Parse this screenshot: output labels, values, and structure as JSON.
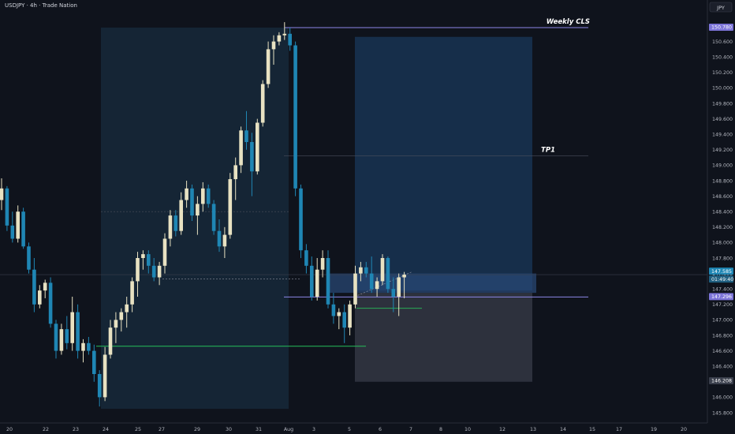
{
  "header": {
    "title": "USDJPY · 4h · Trade Nation"
  },
  "currency_badge": "JPY",
  "colors": {
    "background": "#0f131c",
    "bull": "#e8e2c2",
    "bear": "#1f86b4",
    "level_line": "#8c86e6",
    "green_line": "#26c05a",
    "target_zone": "#1a3a5e",
    "stop_zone": "#3a3f4c",
    "range_box": "#16293a",
    "label_bg_purple": "#7c74d8",
    "label_bg_gray": "#3a3f4c"
  },
  "chart_data": {
    "type": "candlestick",
    "title": "USDJPY · 4h · Trade Nation",
    "ylim": [
      145.7,
      151.0
    ],
    "y_ticks": [
      "150.800",
      "150.600",
      "150.400",
      "150.200",
      "150.000",
      "149.800",
      "149.600",
      "149.400",
      "149.200",
      "149.000",
      "148.800",
      "148.600",
      "148.400",
      "148.200",
      "148.000",
      "147.800",
      "147.600",
      "147.400",
      "147.200",
      "147.000",
      "146.800",
      "146.600",
      "146.400",
      "146.200",
      "146.000",
      "145.800"
    ],
    "x_ticks": [
      "20",
      "22",
      "23",
      "24",
      "25",
      "27",
      "29",
      "30",
      "31",
      "Aug",
      "3",
      "5",
      "6",
      "7",
      "8",
      "10",
      "12",
      "13",
      "14",
      "15",
      "17",
      "19",
      "20"
    ],
    "price_labels": [
      {
        "value": 150.78,
        "text": "150.780",
        "style": "purple"
      },
      {
        "value": 147.585,
        "text": "147.585",
        "style": "current"
      },
      {
        "value": 147.585,
        "text": "01:49:40",
        "style": "countdown"
      },
      {
        "value": 147.296,
        "text": "147.296",
        "style": "purple"
      },
      {
        "value": 146.208,
        "text": "146.208",
        "style": "gray"
      }
    ],
    "annotations": [
      {
        "text": "Weekly CLS",
        "value": 150.78
      },
      {
        "text": "TP1",
        "value": 149.12
      }
    ],
    "levels": [
      {
        "name": "weekly-cls-line",
        "value": 150.78,
        "color": "level_line"
      },
      {
        "name": "entry-line",
        "value": 147.296,
        "color": "level_line"
      },
      {
        "name": "tp1-line",
        "value": 149.12,
        "color": "grid"
      },
      {
        "name": "support-line",
        "value": 146.66,
        "color": "green_line"
      },
      {
        "name": "stop-line",
        "value": 147.15,
        "color": "green_line"
      },
      {
        "name": "range-mid-dashed",
        "value": 148.4,
        "color": "grid"
      },
      {
        "name": "low-dashed",
        "value": 147.53,
        "color": "grid"
      }
    ],
    "zones": [
      {
        "name": "range-box",
        "y_from": 145.85,
        "y_to": 150.78
      },
      {
        "name": "target-zone",
        "y_from": 147.38,
        "y_to": 150.66
      },
      {
        "name": "stop-zone",
        "y_from": 146.2,
        "y_to": 147.35
      },
      {
        "name": "entry-band",
        "y_from": 147.35,
        "y_to": 147.6
      }
    ],
    "candles": [
      {
        "o": 148.55,
        "h": 148.83,
        "l": 148.42,
        "c": 148.7
      },
      {
        "o": 148.7,
        "h": 148.73,
        "l": 148.15,
        "c": 148.22
      },
      {
        "o": 148.22,
        "h": 148.4,
        "l": 148.0,
        "c": 148.05
      },
      {
        "o": 148.05,
        "h": 148.48,
        "l": 148.0,
        "c": 148.4
      },
      {
        "o": 148.4,
        "h": 148.45,
        "l": 147.92,
        "c": 147.95
      },
      {
        "o": 147.95,
        "h": 148.0,
        "l": 147.6,
        "c": 147.65
      },
      {
        "o": 147.65,
        "h": 147.8,
        "l": 147.1,
        "c": 147.2
      },
      {
        "o": 147.2,
        "h": 147.45,
        "l": 147.15,
        "c": 147.38
      },
      {
        "o": 147.38,
        "h": 147.52,
        "l": 147.28,
        "c": 147.48
      },
      {
        "o": 147.48,
        "h": 147.55,
        "l": 146.9,
        "c": 146.95
      },
      {
        "o": 146.95,
        "h": 147.0,
        "l": 146.5,
        "c": 146.6
      },
      {
        "o": 146.6,
        "h": 146.95,
        "l": 146.55,
        "c": 146.88
      },
      {
        "o": 146.88,
        "h": 147.05,
        "l": 146.62,
        "c": 146.7
      },
      {
        "o": 146.7,
        "h": 147.3,
        "l": 146.6,
        "c": 147.1
      },
      {
        "o": 147.1,
        "h": 147.2,
        "l": 146.5,
        "c": 146.6
      },
      {
        "o": 146.6,
        "h": 146.75,
        "l": 146.45,
        "c": 146.7
      },
      {
        "o": 146.7,
        "h": 146.78,
        "l": 146.55,
        "c": 146.6
      },
      {
        "o": 146.6,
        "h": 146.68,
        "l": 146.2,
        "c": 146.3
      },
      {
        "o": 146.3,
        "h": 146.35,
        "l": 145.88,
        "c": 146.0
      },
      {
        "o": 146.0,
        "h": 146.65,
        "l": 145.95,
        "c": 146.55
      },
      {
        "o": 146.55,
        "h": 147.0,
        "l": 146.5,
        "c": 146.9
      },
      {
        "o": 146.9,
        "h": 147.1,
        "l": 146.7,
        "c": 147.0
      },
      {
        "o": 147.0,
        "h": 147.15,
        "l": 146.85,
        "c": 147.1
      },
      {
        "o": 147.1,
        "h": 147.3,
        "l": 146.9,
        "c": 147.2
      },
      {
        "o": 147.2,
        "h": 147.55,
        "l": 147.1,
        "c": 147.5
      },
      {
        "o": 147.5,
        "h": 147.88,
        "l": 147.3,
        "c": 147.8
      },
      {
        "o": 147.8,
        "h": 147.9,
        "l": 147.65,
        "c": 147.85
      },
      {
        "o": 147.85,
        "h": 147.9,
        "l": 147.6,
        "c": 147.7
      },
      {
        "o": 147.7,
        "h": 147.8,
        "l": 147.5,
        "c": 147.55
      },
      {
        "o": 147.55,
        "h": 147.75,
        "l": 147.45,
        "c": 147.7
      },
      {
        "o": 147.7,
        "h": 148.12,
        "l": 147.6,
        "c": 148.05
      },
      {
        "o": 148.05,
        "h": 148.42,
        "l": 147.95,
        "c": 148.35
      },
      {
        "o": 148.35,
        "h": 148.42,
        "l": 148.08,
        "c": 148.15
      },
      {
        "o": 148.15,
        "h": 148.65,
        "l": 148.1,
        "c": 148.55
      },
      {
        "o": 148.55,
        "h": 148.8,
        "l": 148.45,
        "c": 148.7
      },
      {
        "o": 148.7,
        "h": 148.75,
        "l": 148.28,
        "c": 148.35
      },
      {
        "o": 148.35,
        "h": 148.6,
        "l": 148.1,
        "c": 148.5
      },
      {
        "o": 148.5,
        "h": 148.78,
        "l": 148.4,
        "c": 148.7
      },
      {
        "o": 148.7,
        "h": 148.75,
        "l": 148.45,
        "c": 148.5
      },
      {
        "o": 148.5,
        "h": 148.55,
        "l": 148.1,
        "c": 148.15
      },
      {
        "o": 148.15,
        "h": 148.3,
        "l": 147.88,
        "c": 147.95
      },
      {
        "o": 147.95,
        "h": 148.2,
        "l": 147.8,
        "c": 148.1
      },
      {
        "o": 148.1,
        "h": 148.9,
        "l": 148.05,
        "c": 148.82
      },
      {
        "o": 148.82,
        "h": 149.1,
        "l": 148.55,
        "c": 149.0
      },
      {
        "o": 149.0,
        "h": 149.5,
        "l": 148.9,
        "c": 149.45
      },
      {
        "o": 149.45,
        "h": 149.7,
        "l": 149.2,
        "c": 149.3
      },
      {
        "o": 149.3,
        "h": 149.42,
        "l": 148.6,
        "c": 148.92
      },
      {
        "o": 148.92,
        "h": 149.6,
        "l": 148.88,
        "c": 149.55
      },
      {
        "o": 149.55,
        "h": 150.1,
        "l": 149.5,
        "c": 150.05
      },
      {
        "o": 150.05,
        "h": 150.6,
        "l": 150.0,
        "c": 150.5
      },
      {
        "o": 150.5,
        "h": 150.68,
        "l": 150.3,
        "c": 150.6
      },
      {
        "o": 150.6,
        "h": 150.72,
        "l": 150.55,
        "c": 150.68
      },
      {
        "o": 150.68,
        "h": 150.85,
        "l": 150.62,
        "c": 150.7
      },
      {
        "o": 150.7,
        "h": 150.78,
        "l": 150.48,
        "c": 150.55
      },
      {
        "o": 150.55,
        "h": 150.6,
        "l": 148.6,
        "c": 148.7
      },
      {
        "o": 148.7,
        "h": 148.75,
        "l": 147.8,
        "c": 147.9
      },
      {
        "o": 147.9,
        "h": 147.98,
        "l": 147.6,
        "c": 147.7
      },
      {
        "o": 147.7,
        "h": 147.82,
        "l": 147.25,
        "c": 147.3
      },
      {
        "o": 147.3,
        "h": 147.8,
        "l": 147.25,
        "c": 147.65
      },
      {
        "o": 147.65,
        "h": 147.9,
        "l": 147.55,
        "c": 147.8
      },
      {
        "o": 147.8,
        "h": 147.9,
        "l": 147.15,
        "c": 147.2
      },
      {
        "o": 147.2,
        "h": 147.35,
        "l": 146.95,
        "c": 147.05
      },
      {
        "o": 147.05,
        "h": 147.15,
        "l": 146.88,
        "c": 147.1
      },
      {
        "o": 147.1,
        "h": 147.2,
        "l": 146.7,
        "c": 146.9
      },
      {
        "o": 146.9,
        "h": 147.25,
        "l": 146.8,
        "c": 147.2
      },
      {
        "o": 147.2,
        "h": 147.7,
        "l": 147.15,
        "c": 147.6
      },
      {
        "o": 147.6,
        "h": 147.75,
        "l": 147.5,
        "c": 147.68
      },
      {
        "o": 147.68,
        "h": 147.75,
        "l": 147.55,
        "c": 147.6
      },
      {
        "o": 147.6,
        "h": 147.82,
        "l": 147.35,
        "c": 147.4
      },
      {
        "o": 147.4,
        "h": 147.55,
        "l": 147.3,
        "c": 147.5
      },
      {
        "o": 147.5,
        "h": 147.85,
        "l": 147.45,
        "c": 147.8
      },
      {
        "o": 147.8,
        "h": 147.82,
        "l": 147.35,
        "c": 147.4
      },
      {
        "o": 147.4,
        "h": 147.55,
        "l": 147.1,
        "c": 147.3
      },
      {
        "o": 147.3,
        "h": 147.6,
        "l": 147.05,
        "c": 147.55
      },
      {
        "o": 147.55,
        "h": 147.62,
        "l": 147.28,
        "c": 147.585
      }
    ]
  }
}
